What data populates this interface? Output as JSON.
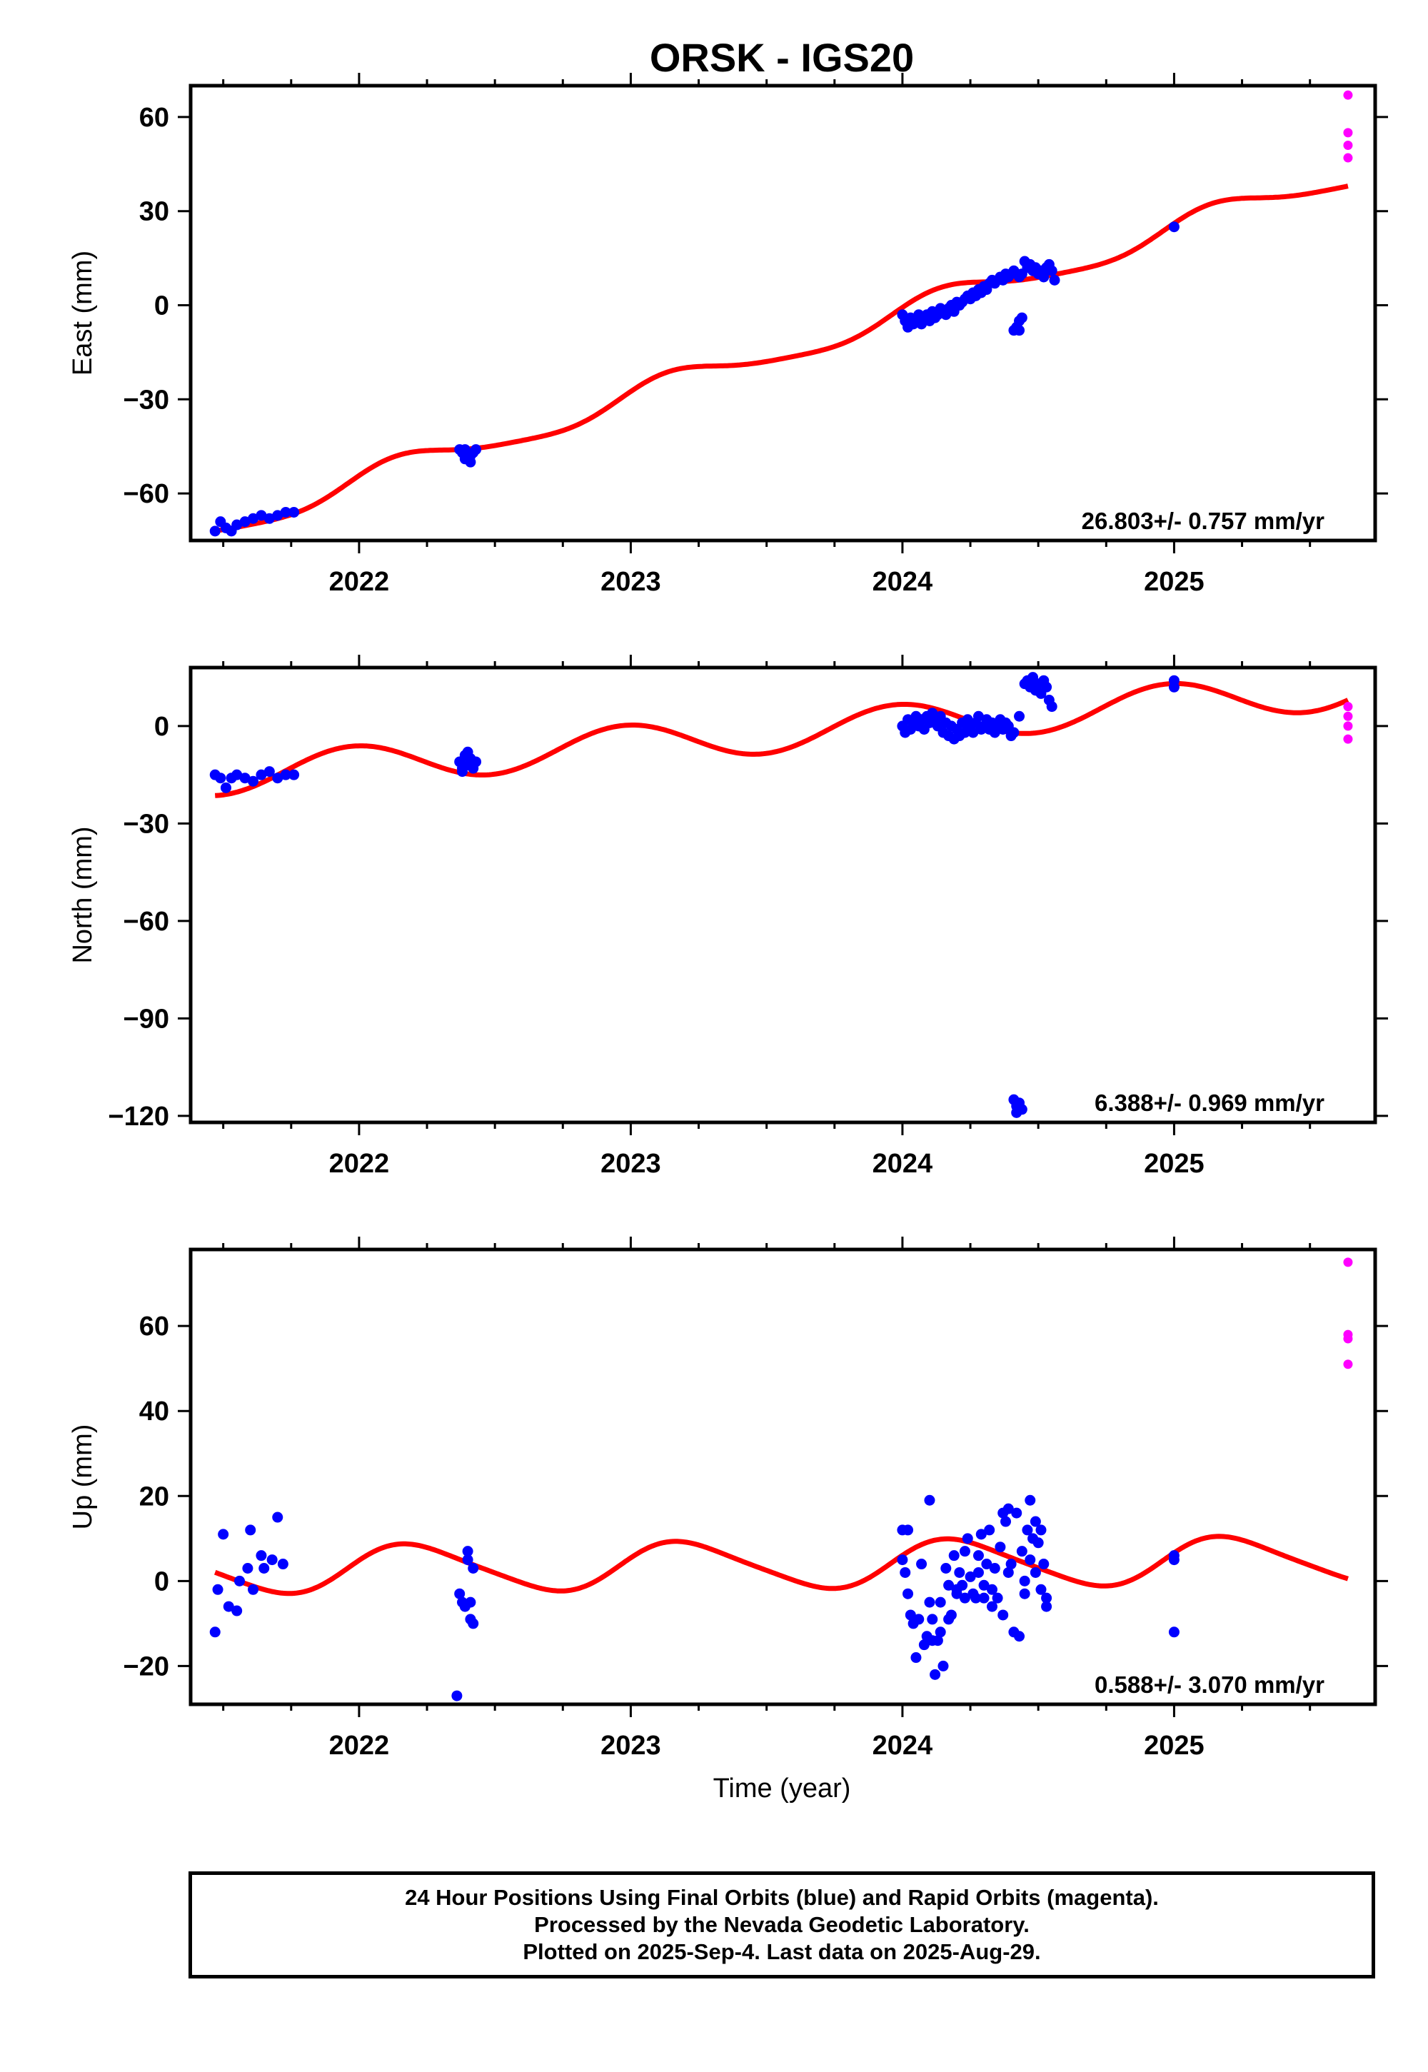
{
  "chart_data": {
    "type": "scatter",
    "title": "ORSK - IGS20",
    "x_range": [
      2021.38,
      2025.74
    ],
    "x_ticks": [
      2022,
      2023,
      2024,
      2025
    ],
    "x_tick_labels": [
      "2022",
      "2023",
      "2024",
      "2025"
    ],
    "xlabel": "Time (year)",
    "colors": {
      "final": "#0000ff",
      "rapid": "#ff00ff",
      "model": "#ff0000"
    },
    "panels": [
      {
        "id": "east",
        "ylabel": "East (mm)",
        "ylim": [
          -75,
          70
        ],
        "y_ticks": [
          -60,
          -30,
          0,
          30,
          60
        ],
        "y_tick_labels": [
          "−60",
          "−30",
          "0",
          "30",
          "60"
        ],
        "rate_text": "26.803+/- 0.757 mm/yr",
        "model": {
          "slope": 26.803,
          "intercept": -73,
          "amp1": 4.0,
          "phase1": 0.5,
          "amp2": 0.8,
          "phase2": 0.2
        },
        "final_points": [
          [
            2021.47,
            -72
          ],
          [
            2021.49,
            -69
          ],
          [
            2021.51,
            -71
          ],
          [
            2021.53,
            -72
          ],
          [
            2021.55,
            -70
          ],
          [
            2021.58,
            -69
          ],
          [
            2021.61,
            -68
          ],
          [
            2021.64,
            -67
          ],
          [
            2021.67,
            -68
          ],
          [
            2021.7,
            -67
          ],
          [
            2021.73,
            -66
          ],
          [
            2021.76,
            -66
          ],
          [
            2022.37,
            -46
          ],
          [
            2022.38,
            -47
          ],
          [
            2022.39,
            -49
          ],
          [
            2022.4,
            -48
          ],
          [
            2022.41,
            -50
          ],
          [
            2022.42,
            -47
          ],
          [
            2022.43,
            -46
          ],
          [
            2022.39,
            -46
          ],
          [
            2022.41,
            -48
          ],
          [
            2024.0,
            -3
          ],
          [
            2024.01,
            -5
          ],
          [
            2024.02,
            -7
          ],
          [
            2024.03,
            -4
          ],
          [
            2024.04,
            -6
          ],
          [
            2024.05,
            -5
          ],
          [
            2024.06,
            -3
          ],
          [
            2024.07,
            -6
          ],
          [
            2024.08,
            -4
          ],
          [
            2024.09,
            -3
          ],
          [
            2024.1,
            -5
          ],
          [
            2024.11,
            -2
          ],
          [
            2024.12,
            -4
          ],
          [
            2024.13,
            -3
          ],
          [
            2024.14,
            -1
          ],
          [
            2024.15,
            -2
          ],
          [
            2024.16,
            -3
          ],
          [
            2024.17,
            -1
          ],
          [
            2024.18,
            0
          ],
          [
            2024.19,
            -2
          ],
          [
            2024.2,
            1
          ],
          [
            2024.21,
            0
          ],
          [
            2024.22,
            1
          ],
          [
            2024.23,
            2
          ],
          [
            2024.24,
            3
          ],
          [
            2024.25,
            2
          ],
          [
            2024.26,
            4
          ],
          [
            2024.27,
            3
          ],
          [
            2024.28,
            5
          ],
          [
            2024.29,
            4
          ],
          [
            2024.3,
            6
          ],
          [
            2024.31,
            5
          ],
          [
            2024.32,
            7
          ],
          [
            2024.33,
            8
          ],
          [
            2024.34,
            7
          ],
          [
            2024.35,
            8
          ],
          [
            2024.36,
            9
          ],
          [
            2024.37,
            8
          ],
          [
            2024.38,
            10
          ],
          [
            2024.39,
            9
          ],
          [
            2024.4,
            10
          ],
          [
            2024.41,
            11
          ],
          [
            2024.42,
            10
          ],
          [
            2024.43,
            9
          ],
          [
            2024.44,
            10
          ],
          [
            2024.45,
            14
          ],
          [
            2024.46,
            12
          ],
          [
            2024.47,
            13
          ],
          [
            2024.48,
            11
          ],
          [
            2024.49,
            12
          ],
          [
            2024.5,
            10
          ],
          [
            2024.51,
            11
          ],
          [
            2024.52,
            9
          ],
          [
            2024.53,
            12
          ],
          [
            2024.54,
            13
          ],
          [
            2024.55,
            11
          ],
          [
            2024.56,
            8
          ],
          [
            2024.41,
            -8
          ],
          [
            2024.42,
            -7
          ],
          [
            2024.43,
            -5
          ],
          [
            2024.44,
            -4
          ],
          [
            2024.43,
            -8
          ],
          [
            2025.0,
            25
          ]
        ],
        "rapid_points": [
          [
            2025.64,
            67
          ],
          [
            2025.64,
            55
          ],
          [
            2025.64,
            51
          ],
          [
            2025.64,
            47
          ]
        ]
      },
      {
        "id": "north",
        "ylabel": "North (mm)",
        "ylim": [
          -122,
          18
        ],
        "y_ticks": [
          -120,
          -90,
          -60,
          -30,
          0
        ],
        "y_tick_labels": [
          "−120",
          "−90",
          "−60",
          "−30",
          "0"
        ],
        "rate_text": "6.388+/- 0.969 mm/yr",
        "model": {
          "slope": 6.388,
          "intercept": -16,
          "amp1": 6.0,
          "phase1": 1.7,
          "amp2": 0.0,
          "phase2": 0.0
        },
        "final_points": [
          [
            2021.47,
            -15
          ],
          [
            2021.49,
            -16
          ],
          [
            2021.51,
            -19
          ],
          [
            2021.53,
            -16
          ],
          [
            2021.55,
            -15
          ],
          [
            2021.58,
            -16
          ],
          [
            2021.61,
            -17
          ],
          [
            2021.64,
            -15
          ],
          [
            2021.67,
            -14
          ],
          [
            2021.7,
            -16
          ],
          [
            2021.73,
            -15
          ],
          [
            2021.76,
            -15
          ],
          [
            2022.37,
            -11
          ],
          [
            2022.38,
            -13
          ],
          [
            2022.39,
            -9
          ],
          [
            2022.4,
            -12
          ],
          [
            2022.41,
            -10
          ],
          [
            2022.42,
            -13
          ],
          [
            2022.43,
            -11
          ],
          [
            2022.4,
            -8
          ],
          [
            2022.38,
            -14
          ],
          [
            2024.0,
            0
          ],
          [
            2024.01,
            -2
          ],
          [
            2024.02,
            2
          ],
          [
            2024.03,
            -1
          ],
          [
            2024.04,
            1
          ],
          [
            2024.05,
            3
          ],
          [
            2024.06,
            0
          ],
          [
            2024.07,
            2
          ],
          [
            2024.08,
            -1
          ],
          [
            2024.09,
            3
          ],
          [
            2024.1,
            1
          ],
          [
            2024.11,
            4
          ],
          [
            2024.12,
            2
          ],
          [
            2024.13,
            0
          ],
          [
            2024.14,
            3
          ],
          [
            2024.15,
            -2
          ],
          [
            2024.16,
            1
          ],
          [
            2024.17,
            -3
          ],
          [
            2024.18,
            0
          ],
          [
            2024.19,
            -4
          ],
          [
            2024.2,
            -1
          ],
          [
            2024.21,
            -3
          ],
          [
            2024.22,
            1
          ],
          [
            2024.23,
            -2
          ],
          [
            2024.24,
            2
          ],
          [
            2024.25,
            0
          ],
          [
            2024.26,
            -2
          ],
          [
            2024.27,
            1
          ],
          [
            2024.28,
            3
          ],
          [
            2024.29,
            -1
          ],
          [
            2024.3,
            0
          ],
          [
            2024.31,
            2
          ],
          [
            2024.32,
            -1
          ],
          [
            2024.33,
            1
          ],
          [
            2024.34,
            -2
          ],
          [
            2024.35,
            0
          ],
          [
            2024.36,
            2
          ],
          [
            2024.37,
            -1
          ],
          [
            2024.38,
            1
          ],
          [
            2024.39,
            0
          ],
          [
            2024.4,
            -3
          ],
          [
            2024.41,
            -2
          ],
          [
            2024.43,
            3
          ],
          [
            2024.45,
            13
          ],
          [
            2024.46,
            14
          ],
          [
            2024.47,
            12
          ],
          [
            2024.48,
            15
          ],
          [
            2024.49,
            11
          ],
          [
            2024.5,
            13
          ],
          [
            2024.51,
            10
          ],
          [
            2024.52,
            14
          ],
          [
            2024.53,
            12
          ],
          [
            2024.54,
            8
          ],
          [
            2024.55,
            6
          ],
          [
            2024.41,
            -115
          ],
          [
            2024.42,
            -117
          ],
          [
            2024.43,
            -116
          ],
          [
            2024.44,
            -118
          ],
          [
            2024.42,
            -119
          ],
          [
            2025.0,
            14
          ],
          [
            2025.0,
            12
          ]
        ],
        "rapid_points": [
          [
            2025.64,
            6
          ],
          [
            2025.64,
            3
          ],
          [
            2025.64,
            0
          ],
          [
            2025.64,
            -4
          ]
        ]
      },
      {
        "id": "up",
        "ylabel": "Up (mm)",
        "ylim": [
          -29,
          78
        ],
        "y_ticks": [
          -20,
          0,
          20,
          40,
          60
        ],
        "y_tick_labels": [
          "−20",
          "0",
          "20",
          "40",
          "60"
        ],
        "rate_text": "0.588+/- 3.070 mm/yr",
        "model": {
          "slope": 0.588,
          "intercept": 2.5,
          "amp1": 5.5,
          "phase1": 0.3,
          "amp2": 0.8,
          "phase2": 0.5
        },
        "final_points": [
          [
            2021.47,
            -12
          ],
          [
            2021.48,
            -2
          ],
          [
            2021.5,
            11
          ],
          [
            2021.52,
            -6
          ],
          [
            2021.55,
            -7
          ],
          [
            2021.56,
            0
          ],
          [
            2021.59,
            3
          ],
          [
            2021.6,
            12
          ],
          [
            2021.61,
            -2
          ],
          [
            2021.64,
            6
          ],
          [
            2021.65,
            3
          ],
          [
            2021.68,
            5
          ],
          [
            2021.7,
            15
          ],
          [
            2021.72,
            4
          ],
          [
            2022.36,
            -27
          ],
          [
            2022.37,
            -3
          ],
          [
            2022.38,
            -5
          ],
          [
            2022.39,
            -6
          ],
          [
            2022.4,
            5
          ],
          [
            2022.41,
            -9
          ],
          [
            2022.41,
            -5
          ],
          [
            2022.42,
            -10
          ],
          [
            2022.42,
            3
          ],
          [
            2022.4,
            7
          ],
          [
            2024.0,
            12
          ],
          [
            2024.0,
            5
          ],
          [
            2024.01,
            2
          ],
          [
            2024.02,
            -3
          ],
          [
            2024.02,
            12
          ],
          [
            2024.03,
            -8
          ],
          [
            2024.04,
            -10
          ],
          [
            2024.05,
            -18
          ],
          [
            2024.06,
            -9
          ],
          [
            2024.07,
            4
          ],
          [
            2024.08,
            -15
          ],
          [
            2024.09,
            -13
          ],
          [
            2024.1,
            19
          ],
          [
            2024.1,
            -5
          ],
          [
            2024.11,
            -14
          ],
          [
            2024.11,
            -9
          ],
          [
            2024.12,
            -22
          ],
          [
            2024.13,
            -14
          ],
          [
            2024.14,
            -12
          ],
          [
            2024.14,
            -5
          ],
          [
            2024.15,
            -20
          ],
          [
            2024.16,
            3
          ],
          [
            2024.17,
            -1
          ],
          [
            2024.17,
            -9
          ],
          [
            2024.18,
            -8
          ],
          [
            2024.19,
            6
          ],
          [
            2024.2,
            -2
          ],
          [
            2024.2,
            -3
          ],
          [
            2024.21,
            2
          ],
          [
            2024.22,
            -1
          ],
          [
            2024.23,
            7
          ],
          [
            2024.23,
            -4
          ],
          [
            2024.24,
            10
          ],
          [
            2024.25,
            1
          ],
          [
            2024.26,
            -3
          ],
          [
            2024.27,
            -4
          ],
          [
            2024.28,
            6
          ],
          [
            2024.28,
            2
          ],
          [
            2024.29,
            11
          ],
          [
            2024.3,
            -1
          ],
          [
            2024.3,
            -4
          ],
          [
            2024.31,
            4
          ],
          [
            2024.32,
            12
          ],
          [
            2024.33,
            -2
          ],
          [
            2024.33,
            -6
          ],
          [
            2024.34,
            3
          ],
          [
            2024.35,
            -4
          ],
          [
            2024.36,
            8
          ],
          [
            2024.37,
            16
          ],
          [
            2024.37,
            -8
          ],
          [
            2024.38,
            14
          ],
          [
            2024.39,
            2
          ],
          [
            2024.39,
            17
          ],
          [
            2024.4,
            4
          ],
          [
            2024.41,
            -12
          ],
          [
            2024.42,
            16
          ],
          [
            2024.43,
            -13
          ],
          [
            2024.44,
            7
          ],
          [
            2024.45,
            0
          ],
          [
            2024.45,
            -3
          ],
          [
            2024.46,
            12
          ],
          [
            2024.47,
            19
          ],
          [
            2024.47,
            5
          ],
          [
            2024.48,
            10
          ],
          [
            2024.49,
            14
          ],
          [
            2024.49,
            2
          ],
          [
            2024.5,
            9
          ],
          [
            2024.51,
            12
          ],
          [
            2024.51,
            -2
          ],
          [
            2024.52,
            4
          ],
          [
            2024.53,
            -6
          ],
          [
            2024.53,
            -4
          ],
          [
            2025.0,
            6
          ],
          [
            2025.0,
            5
          ],
          [
            2025.0,
            -12
          ]
        ],
        "rapid_points": [
          [
            2025.64,
            75
          ],
          [
            2025.64,
            58
          ],
          [
            2025.64,
            57
          ],
          [
            2025.64,
            51
          ]
        ]
      }
    ]
  },
  "footer": {
    "line1": "24 Hour Positions Using Final Orbits (blue) and Rapid Orbits (magenta).",
    "line2": "Processed by the Nevada Geodetic Laboratory.",
    "line3": "Plotted on 2025-Sep-4. Last data on 2025-Aug-29."
  }
}
